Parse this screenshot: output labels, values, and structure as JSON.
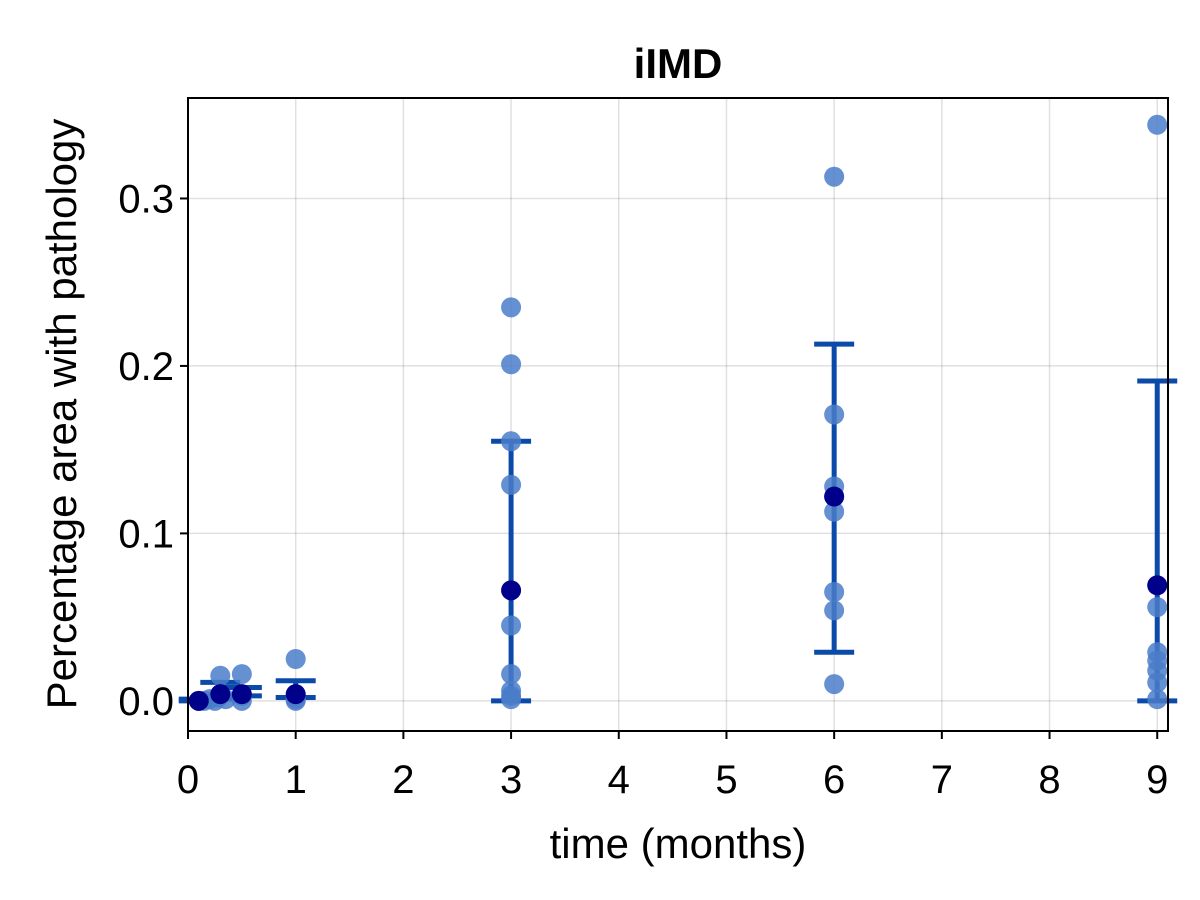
{
  "chart_data": {
    "type": "scatter",
    "title": "iIMD",
    "xlabel": "time (months)",
    "ylabel": "Percentage area with pathology",
    "xlim": [
      0,
      9.1
    ],
    "ylim": [
      -0.018,
      0.36
    ],
    "xticks": [
      0,
      1,
      2,
      3,
      4,
      5,
      6,
      7,
      8,
      9
    ],
    "xtick_labels": [
      "0",
      "1",
      "2",
      "3",
      "4",
      "5",
      "6",
      "7",
      "8",
      "9"
    ],
    "yticks": [
      0.0,
      0.1,
      0.2,
      0.3
    ],
    "ytick_labels": [
      "0.0",
      "0.1",
      "0.2",
      "0.3"
    ],
    "grid": true,
    "legend": "none",
    "colors": {
      "points": "#4a7cc9",
      "errorbars": "#0b4aa8",
      "means": "#00008b"
    },
    "series": [
      {
        "points": [
          {
            "x": 0.1,
            "y": 0.0
          },
          {
            "x": 0.15,
            "y": 0.0
          },
          {
            "x": 0.2,
            "y": 0.001
          },
          {
            "x": 0.25,
            "y": 0.0
          },
          {
            "x": 0.28,
            "y": 0.002
          },
          {
            "x": 0.3,
            "y": 0.015
          },
          {
            "x": 0.35,
            "y": 0.001
          },
          {
            "x": 0.5,
            "y": 0.016
          },
          {
            "x": 0.5,
            "y": 0.003
          },
          {
            "x": 0.5,
            "y": 0.0
          },
          {
            "x": 1,
            "y": 0.025
          },
          {
            "x": 1,
            "y": 0.003
          },
          {
            "x": 1,
            "y": 0.001
          },
          {
            "x": 1,
            "y": 0.0
          },
          {
            "x": 3,
            "y": 0.235
          },
          {
            "x": 3,
            "y": 0.201
          },
          {
            "x": 3,
            "y": 0.155
          },
          {
            "x": 3,
            "y": 0.129
          },
          {
            "x": 3,
            "y": 0.045
          },
          {
            "x": 3,
            "y": 0.016
          },
          {
            "x": 3,
            "y": 0.006
          },
          {
            "x": 3,
            "y": 0.003
          },
          {
            "x": 3,
            "y": 0.001
          },
          {
            "x": 6,
            "y": 0.313
          },
          {
            "x": 6,
            "y": 0.171
          },
          {
            "x": 6,
            "y": 0.128
          },
          {
            "x": 6,
            "y": 0.122
          },
          {
            "x": 6,
            "y": 0.113
          },
          {
            "x": 6,
            "y": 0.065
          },
          {
            "x": 6,
            "y": 0.054
          },
          {
            "x": 6,
            "y": 0.01
          },
          {
            "x": 9,
            "y": 0.344
          },
          {
            "x": 9,
            "y": 0.069
          },
          {
            "x": 9,
            "y": 0.056
          },
          {
            "x": 9,
            "y": 0.029
          },
          {
            "x": 9,
            "y": 0.024
          },
          {
            "x": 9,
            "y": 0.018
          },
          {
            "x": 9,
            "y": 0.011
          },
          {
            "x": 9,
            "y": 0.001
          }
        ]
      },
      {
        "means": [
          {
            "x": 0.1,
            "y": 0.0,
            "lower": 0.0,
            "upper": 0.001
          },
          {
            "x": 0.3,
            "y": 0.004,
            "lower": 0.001,
            "upper": 0.011
          },
          {
            "x": 0.5,
            "y": 0.004,
            "lower": 0.003,
            "upper": 0.008
          },
          {
            "x": 1,
            "y": 0.004,
            "lower": 0.002,
            "upper": 0.012
          },
          {
            "x": 3,
            "y": 0.066,
            "lower": 0.0,
            "upper": 0.155
          },
          {
            "x": 6,
            "y": 0.122,
            "lower": 0.029,
            "upper": 0.213
          },
          {
            "x": 9,
            "y": 0.069,
            "lower": 0.0,
            "upper": 0.191
          }
        ]
      }
    ]
  }
}
